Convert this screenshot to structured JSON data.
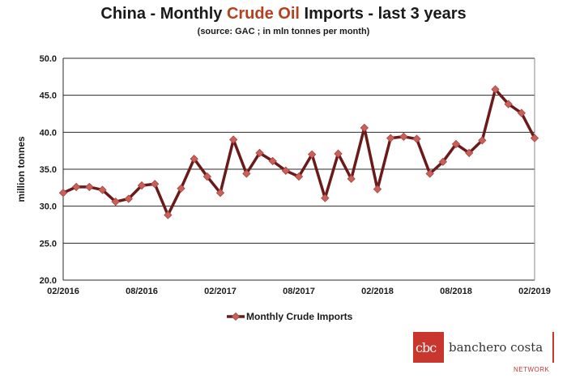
{
  "title": {
    "prefix": "China - Monthly ",
    "highlight": "Crude Oil",
    "suffix": " Imports - last 3 years",
    "highlight_color": "#b5401f"
  },
  "subtitle": "(source: GAC ; in mln tonnes per month)",
  "chart_data": {
    "type": "line",
    "title": "China - Monthly Crude Oil Imports - last 3 years",
    "subtitle": "(source: GAC ; in mln tonnes per month)",
    "ylabel": "million tonnes",
    "xlabel": "",
    "ylim": [
      20.0,
      50.0
    ],
    "yticks": [
      "20.0",
      "25.0",
      "30.0",
      "35.0",
      "40.0",
      "45.0",
      "50.0"
    ],
    "xtick_labels": [
      {
        "index": 0,
        "label": "02/2016"
      },
      {
        "index": 6,
        "label": "08/2016"
      },
      {
        "index": 12,
        "label": "02/2017"
      },
      {
        "index": 18,
        "label": "08/2017"
      },
      {
        "index": 24,
        "label": "02/2018"
      },
      {
        "index": 30,
        "label": "08/2018"
      },
      {
        "index": 36,
        "label": "02/2019"
      }
    ],
    "grid": true,
    "legend_position": "bottom",
    "series": [
      {
        "name": "Monthly Crude Imports",
        "line_color": "#6b1a1a",
        "marker_color": "#c9605a",
        "x": [
          "02/2016",
          "03/2016",
          "04/2016",
          "05/2016",
          "06/2016",
          "07/2016",
          "08/2016",
          "09/2016",
          "10/2016",
          "11/2016",
          "12/2016",
          "01/2017",
          "02/2017",
          "03/2017",
          "04/2017",
          "05/2017",
          "06/2017",
          "07/2017",
          "08/2017",
          "09/2017",
          "10/2017",
          "11/2017",
          "12/2017",
          "01/2018",
          "02/2018",
          "03/2018",
          "04/2018",
          "05/2018",
          "06/2018",
          "07/2018",
          "08/2018",
          "09/2018",
          "10/2018",
          "11/2018",
          "12/2018",
          "01/2019",
          "02/2019"
        ],
        "values": [
          31.8,
          32.6,
          32.6,
          32.2,
          30.6,
          31.0,
          32.8,
          33.0,
          28.8,
          32.4,
          36.4,
          34.0,
          31.8,
          39.0,
          34.4,
          37.2,
          36.1,
          34.8,
          34.0,
          37.0,
          31.1,
          37.1,
          33.7,
          40.6,
          32.3,
          39.2,
          39.4,
          39.1,
          34.4,
          36.0,
          38.4,
          37.2,
          38.9,
          45.8,
          43.8,
          42.6,
          39.2
        ]
      }
    ]
  },
  "logo": {
    "mark_text": "cbc",
    "name": "banchero costa",
    "tagline": "NETWORK"
  }
}
